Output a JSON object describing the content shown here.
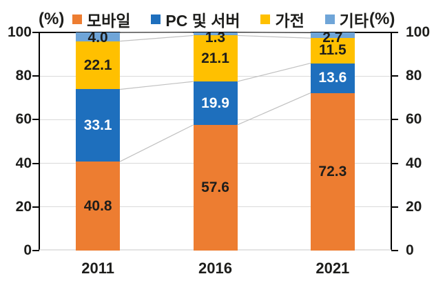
{
  "axis": {
    "unit_left": "(%)",
    "unit_right": "(%)",
    "ticks": [
      0,
      20,
      40,
      60,
      80,
      100
    ]
  },
  "colors": {
    "mobile_orange": "#ED7D31",
    "pc_server_blue": "#1E6FBD",
    "appliance_yellow": "#FFC000",
    "etc_lightblue": "#6FA5D8",
    "gridline_gray": "#D9D9D9",
    "connector_gray": "#C0C0C0",
    "axis_black": "#000000",
    "label_dark": "#1d1d1b",
    "label_white": "#ffffff"
  },
  "chart_data": {
    "type": "bar",
    "stacked": true,
    "categories": [
      "2011",
      "2016",
      "2021"
    ],
    "series": [
      {
        "name": "모바일",
        "color": "#ED7D31",
        "label_color": "#1d1d1b",
        "values": [
          40.8,
          57.6,
          72.3
        ]
      },
      {
        "name": "PC 및 서버",
        "color": "#1E6FBD",
        "label_color": "#ffffff",
        "values": [
          33.1,
          19.9,
          13.6
        ]
      },
      {
        "name": "가전",
        "color": "#FFC000",
        "label_color": "#1d1d1b",
        "values": [
          22.1,
          21.1,
          11.5
        ]
      },
      {
        "name": "기타",
        "color": "#6FA5D8",
        "label_color": "#1d1d1b",
        "values": [
          4.0,
          1.3,
          2.7
        ]
      }
    ],
    "ylabel": "(%)",
    "ylim": [
      0,
      100
    ],
    "grid": true,
    "legend_position": "top",
    "connector_lines": true
  }
}
